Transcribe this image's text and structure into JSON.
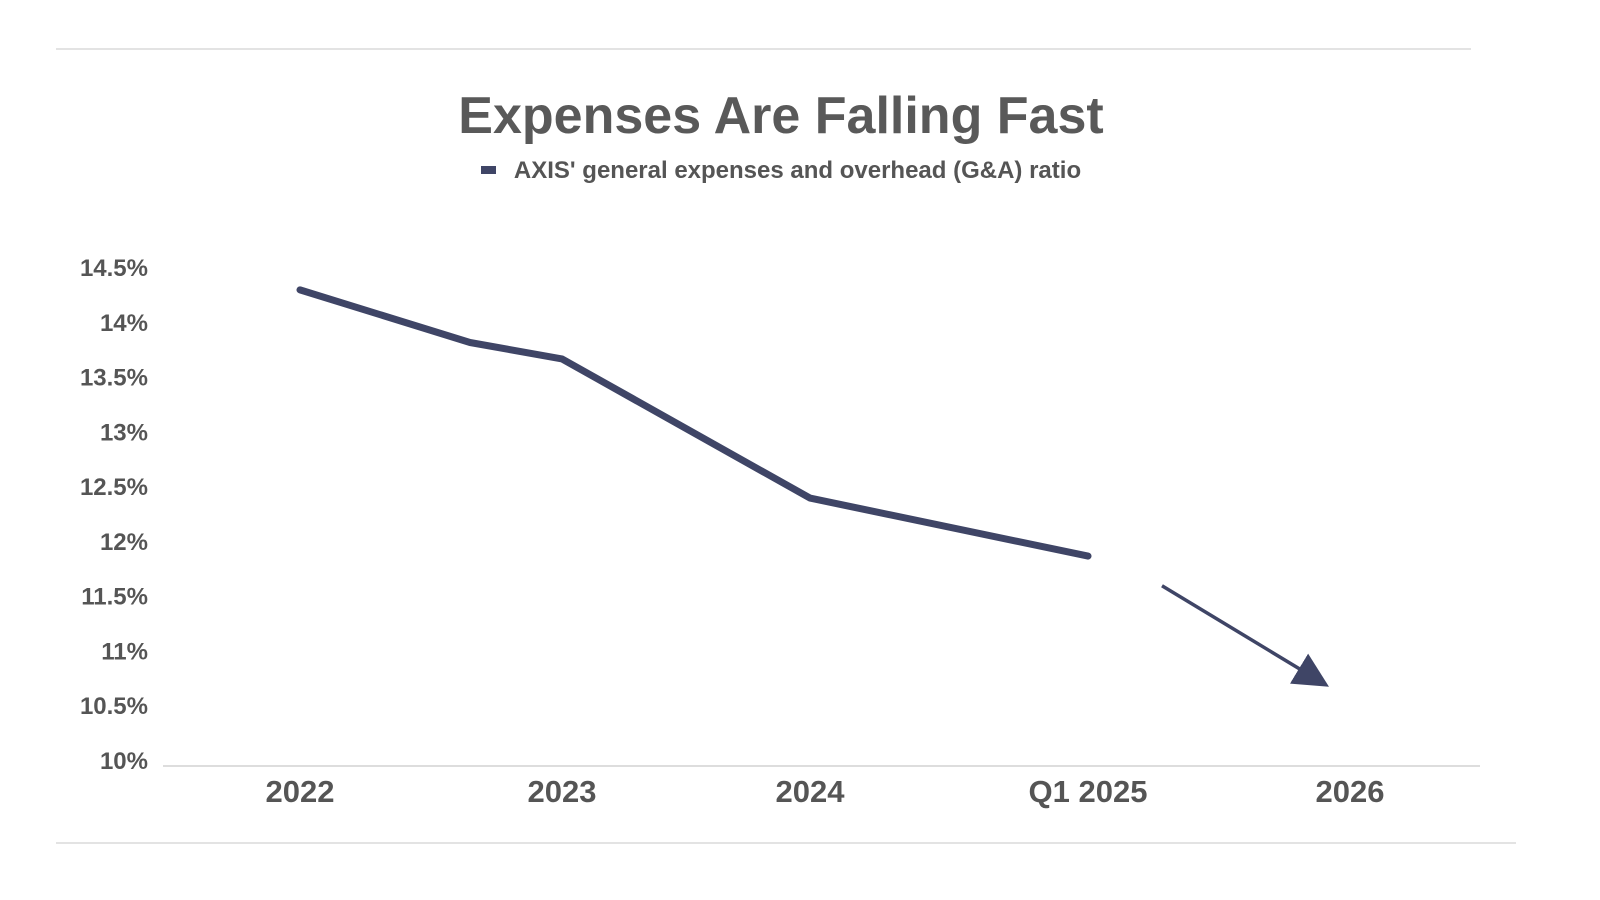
{
  "chart_data": {
    "type": "line",
    "title": "Expenses Are Falling Fast",
    "legend": "AXIS' general expenses and overhead (G&A) ratio",
    "categories": [
      "2022",
      "2023",
      "2024",
      "Q1 2025",
      "2026"
    ],
    "series": [
      {
        "name": "AXIS' general expenses and overhead (G&A) ratio",
        "color": "#3f4566",
        "points": [
          {
            "x": "2022",
            "y": 14.3
          },
          {
            "x": "2022 Q3",
            "y": 13.82
          },
          {
            "x": "2023",
            "y": 13.67
          },
          {
            "x": "2024",
            "y": 12.4
          },
          {
            "x": "Q1 2025",
            "y": 11.87
          }
        ]
      }
    ],
    "trend_arrow": {
      "from": {
        "x": "Q1 2025",
        "y": 11.6
      },
      "to": {
        "x": "2026",
        "y": 10.6
      },
      "color": "#3f4566"
    },
    "ylim": [
      10,
      14.5
    ],
    "yticks": [
      "10%",
      "10.5%",
      "11%",
      "11.5%",
      "12%",
      "12.5%",
      "13%",
      "13.5%",
      "14%",
      "14.5%"
    ],
    "ytick_values": [
      10,
      10.5,
      11,
      11.5,
      12,
      12.5,
      13,
      13.5,
      14,
      14.5
    ],
    "grid": false,
    "legend_position": "top"
  }
}
